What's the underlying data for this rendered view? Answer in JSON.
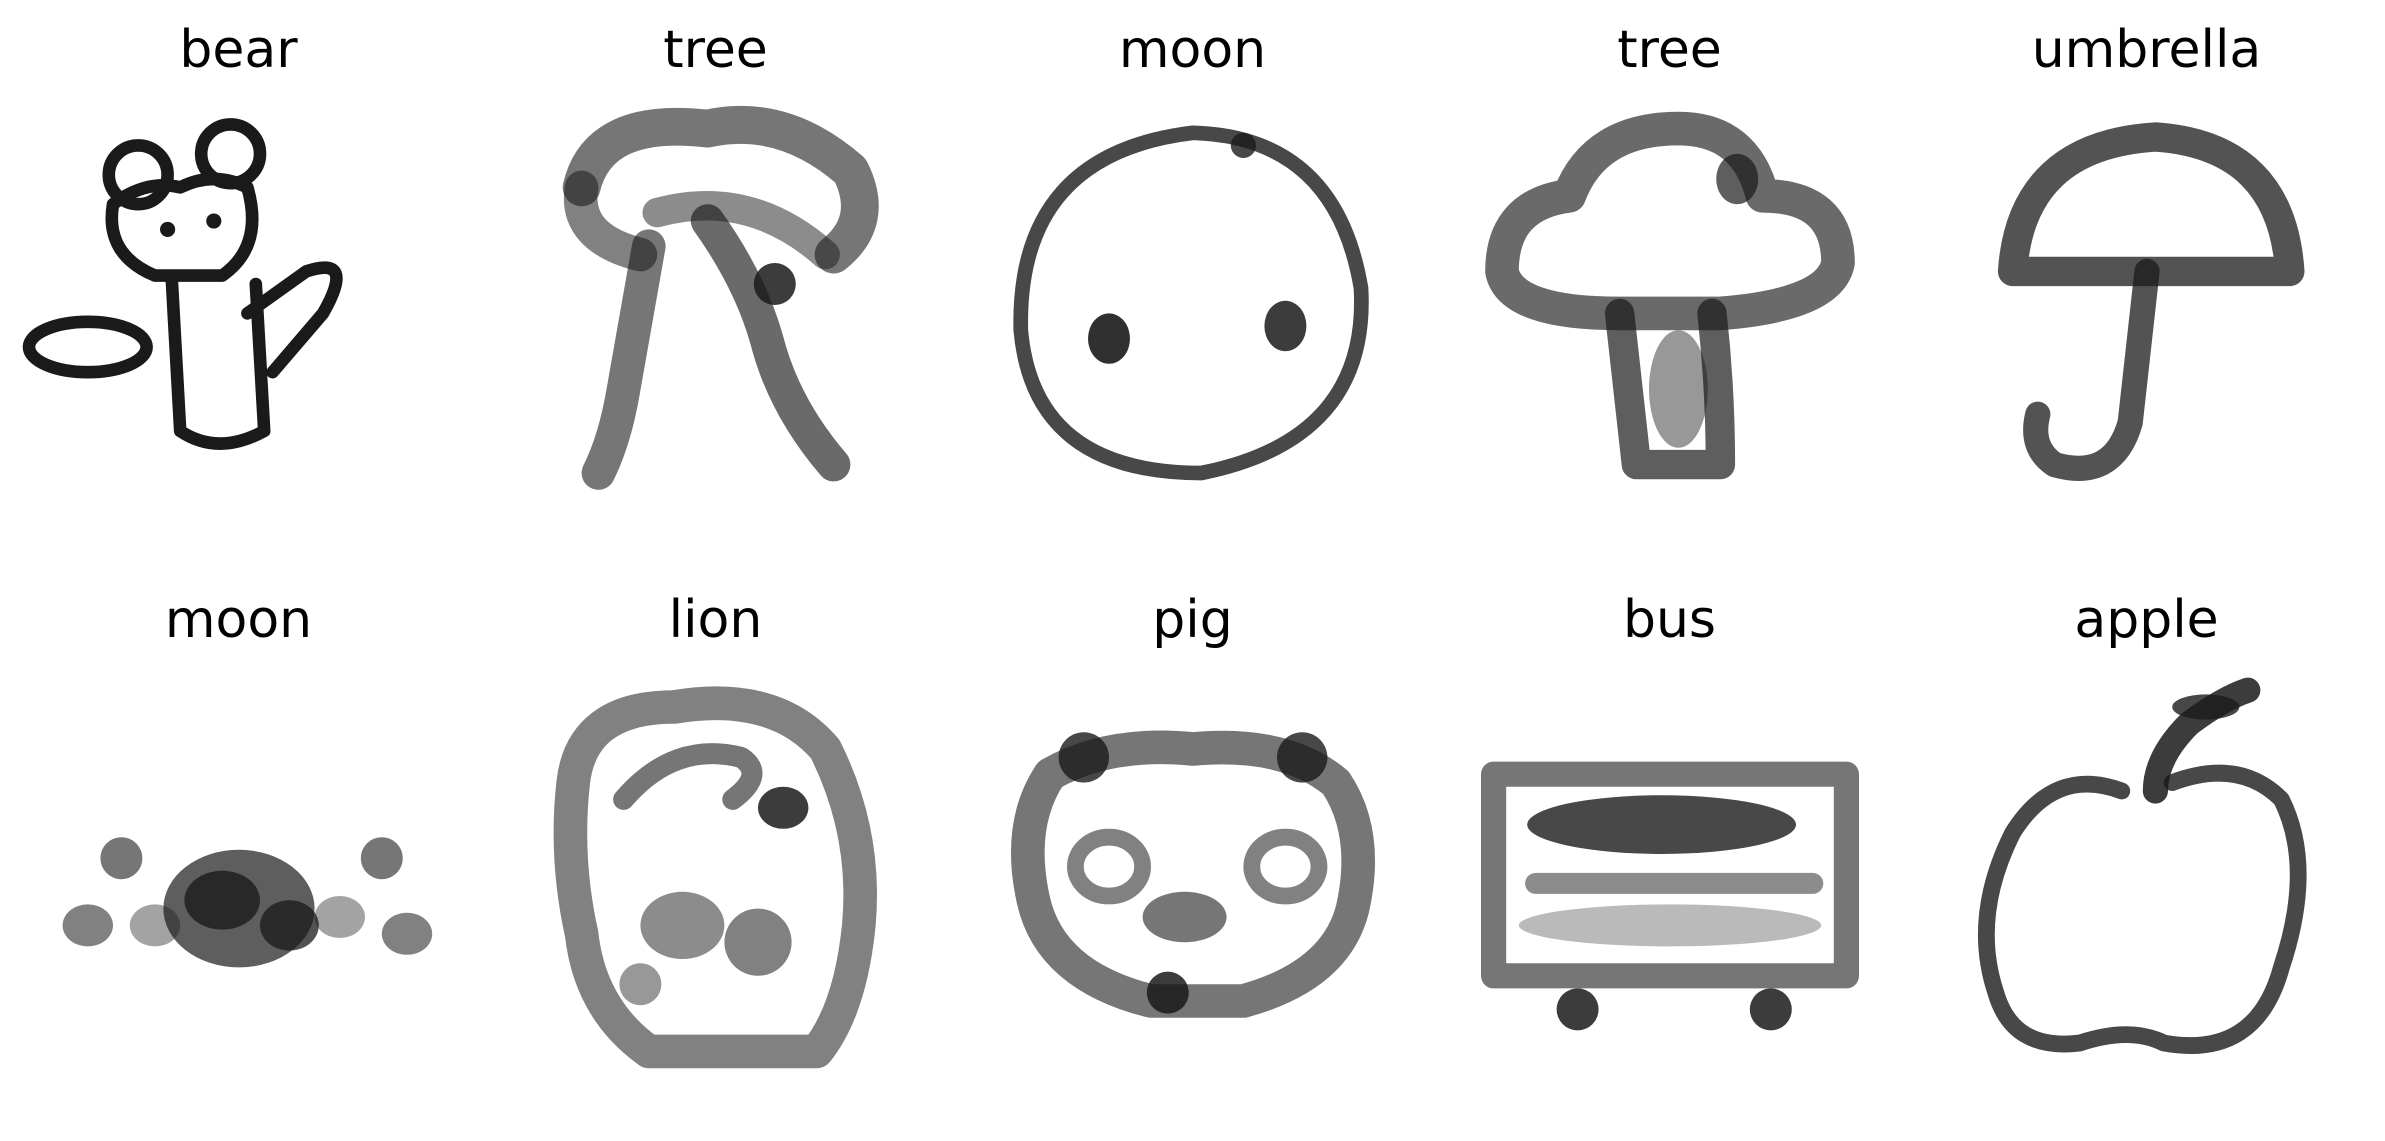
{
  "samples": [
    {
      "label": "bear",
      "icon": "bear-sketch-icon"
    },
    {
      "label": "tree",
      "icon": "tree-sketch-icon"
    },
    {
      "label": "moon",
      "icon": "moon-face-sketch-icon"
    },
    {
      "label": "tree",
      "icon": "mushroom-tree-sketch-icon"
    },
    {
      "label": "umbrella",
      "icon": "umbrella-sketch-icon"
    },
    {
      "label": "moon",
      "icon": "blob-sketch-icon"
    },
    {
      "label": "lion",
      "icon": "lion-face-sketch-icon"
    },
    {
      "label": "pig",
      "icon": "pig-face-sketch-icon"
    },
    {
      "label": "bus",
      "icon": "bus-sketch-icon"
    },
    {
      "label": "apple",
      "icon": "apple-sketch-icon"
    }
  ],
  "colors": {
    "ink": "#1a1a1a",
    "background": "#ffffff"
  }
}
